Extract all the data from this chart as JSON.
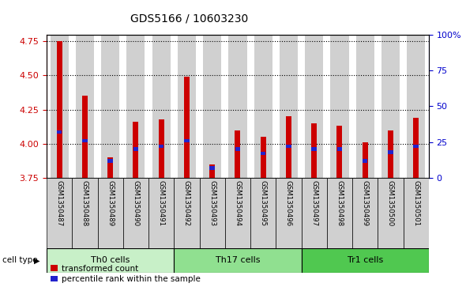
{
  "title": "GDS5166 / 10603230",
  "samples": [
    "GSM1350487",
    "GSM1350488",
    "GSM1350489",
    "GSM1350490",
    "GSM1350491",
    "GSM1350492",
    "GSM1350493",
    "GSM1350494",
    "GSM1350495",
    "GSM1350496",
    "GSM1350497",
    "GSM1350498",
    "GSM1350499",
    "GSM1350500",
    "GSM1350501"
  ],
  "transformed_count": [
    4.75,
    4.35,
    3.9,
    4.16,
    4.18,
    4.49,
    3.85,
    4.1,
    4.05,
    4.2,
    4.15,
    4.13,
    4.01,
    4.1,
    4.19
  ],
  "percentile_rank": [
    32,
    26,
    12,
    20,
    22,
    26,
    7,
    20,
    17,
    22,
    20,
    20,
    12,
    18,
    22
  ],
  "cell_groups": [
    {
      "label": "Th0 cells",
      "start": 0,
      "end": 5,
      "color": "#c8f0c8"
    },
    {
      "label": "Th17 cells",
      "start": 5,
      "end": 10,
      "color": "#90e090"
    },
    {
      "label": "Tr1 cells",
      "start": 10,
      "end": 15,
      "color": "#50c850"
    }
  ],
  "ymin": 3.75,
  "ymax": 4.8,
  "yticks_left": [
    3.75,
    4.0,
    4.25,
    4.5,
    4.75
  ],
  "ylim_right": [
    0,
    100
  ],
  "yticks_right": [
    0,
    25,
    50,
    75,
    100
  ],
  "bar_color": "#cc0000",
  "percentile_color": "#2222cc",
  "bar_bg_color": "#d0d0d0",
  "title_fontsize": 10,
  "axis_color_left": "#cc0000",
  "axis_color_right": "#0000cc",
  "legend_items": [
    "transformed count",
    "percentile rank within the sample"
  ],
  "cell_type_label": "cell type"
}
